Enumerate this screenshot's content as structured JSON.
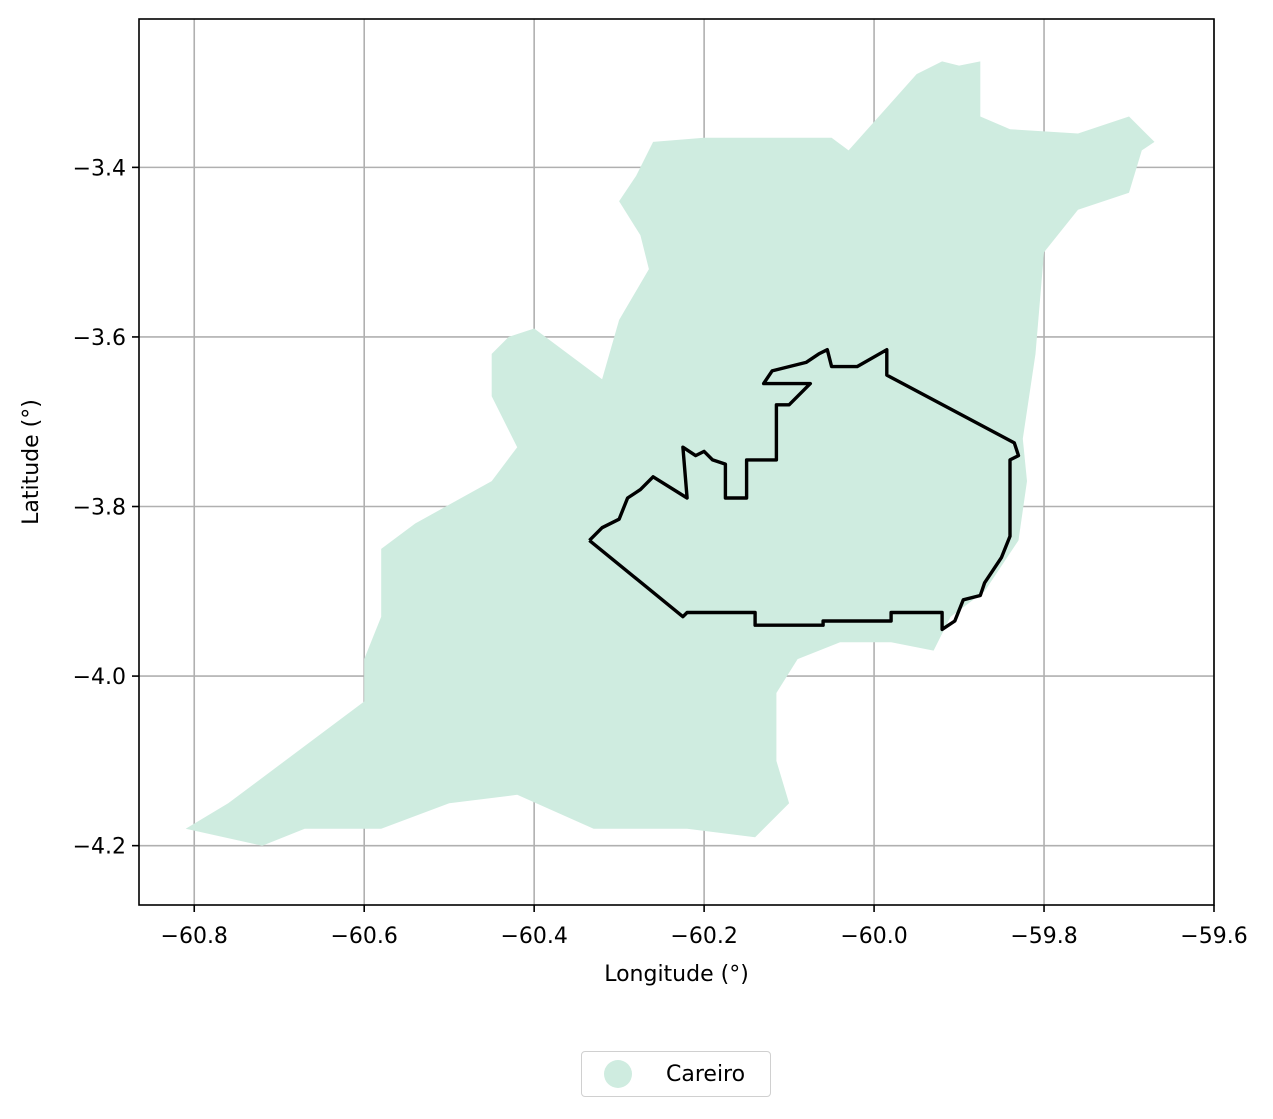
{
  "colors": {
    "region_fill": "#cfece0",
    "boundary_stroke": "#000000",
    "grid": "#b0b0b0"
  },
  "chart_data": {
    "type": "map",
    "title": "",
    "xlabel": "Longitude (°)",
    "ylabel": "Latitude (°)",
    "xlim": [
      -60.865,
      -59.6
    ],
    "ylim": [
      -4.27,
      -3.225
    ],
    "grid": true,
    "x_ticks": [
      -60.8,
      -60.6,
      -60.4,
      -60.2,
      -60.0,
      -59.8,
      -59.6
    ],
    "x_tick_labels": [
      "−60.8",
      "−60.6",
      "−60.4",
      "−60.2",
      "−60.0",
      "−59.8",
      "−59.6"
    ],
    "y_ticks": [
      -3.4,
      -3.6,
      -3.8,
      -4.0,
      -4.2
    ],
    "y_tick_labels": [
      "−3.4",
      "−3.6",
      "−3.8",
      "−4.0",
      "−4.2"
    ],
    "legend": {
      "placement": "bottom-center-below-axes",
      "entries": [
        {
          "label": "Careiro",
          "marker": "circle",
          "color": "#cfece0"
        }
      ]
    },
    "layers": [
      {
        "name": "Careiro",
        "kind": "filled-polygon",
        "coords": [
          [
            -60.81,
            -4.18
          ],
          [
            -60.72,
            -4.2
          ],
          [
            -60.67,
            -4.18
          ],
          [
            -60.58,
            -4.18
          ],
          [
            -60.5,
            -4.15
          ],
          [
            -60.42,
            -4.14
          ],
          [
            -60.33,
            -4.18
          ],
          [
            -60.22,
            -4.18
          ],
          [
            -60.14,
            -4.19
          ],
          [
            -60.1,
            -4.15
          ],
          [
            -60.115,
            -4.1
          ],
          [
            -60.115,
            -4.02
          ],
          [
            -60.09,
            -3.98
          ],
          [
            -60.04,
            -3.96
          ],
          [
            -59.98,
            -3.96
          ],
          [
            -59.93,
            -3.97
          ],
          [
            -59.91,
            -3.93
          ],
          [
            -59.87,
            -3.9
          ],
          [
            -59.85,
            -3.87
          ],
          [
            -59.83,
            -3.84
          ],
          [
            -59.82,
            -3.77
          ],
          [
            -59.825,
            -3.72
          ],
          [
            -59.81,
            -3.62
          ],
          [
            -59.8,
            -3.5
          ],
          [
            -59.76,
            -3.45
          ],
          [
            -59.7,
            -3.43
          ],
          [
            -59.685,
            -3.38
          ],
          [
            -59.67,
            -3.37
          ],
          [
            -59.7,
            -3.34
          ],
          [
            -59.76,
            -3.36
          ],
          [
            -59.84,
            -3.355
          ],
          [
            -59.875,
            -3.34
          ],
          [
            -59.875,
            -3.275
          ],
          [
            -59.9,
            -3.28
          ],
          [
            -59.92,
            -3.275
          ],
          [
            -59.95,
            -3.29
          ],
          [
            -60.03,
            -3.38
          ],
          [
            -60.05,
            -3.365
          ],
          [
            -60.2,
            -3.365
          ],
          [
            -60.26,
            -3.37
          ],
          [
            -60.28,
            -3.41
          ],
          [
            -60.3,
            -3.44
          ],
          [
            -60.275,
            -3.48
          ],
          [
            -60.265,
            -3.52
          ],
          [
            -60.3,
            -3.58
          ],
          [
            -60.32,
            -3.65
          ],
          [
            -60.4,
            -3.59
          ],
          [
            -60.43,
            -3.6
          ],
          [
            -60.45,
            -3.62
          ],
          [
            -60.45,
            -3.67
          ],
          [
            -60.42,
            -3.73
          ],
          [
            -60.45,
            -3.77
          ],
          [
            -60.54,
            -3.82
          ],
          [
            -60.58,
            -3.85
          ],
          [
            -60.58,
            -3.93
          ],
          [
            -60.6,
            -3.98
          ],
          [
            -60.6,
            -4.03
          ],
          [
            -60.76,
            -4.15
          ],
          [
            -60.81,
            -4.18
          ]
        ]
      },
      {
        "name": "",
        "kind": "outline-polygon",
        "coords": [
          [
            -60.335,
            -3.84
          ],
          [
            -60.32,
            -3.825
          ],
          [
            -60.3,
            -3.815
          ],
          [
            -60.29,
            -3.79
          ],
          [
            -60.275,
            -3.78
          ],
          [
            -60.26,
            -3.765
          ],
          [
            -60.22,
            -3.79
          ],
          [
            -60.225,
            -3.73
          ],
          [
            -60.21,
            -3.74
          ],
          [
            -60.2,
            -3.735
          ],
          [
            -60.19,
            -3.745
          ],
          [
            -60.175,
            -3.75
          ],
          [
            -60.175,
            -3.79
          ],
          [
            -60.15,
            -3.79
          ],
          [
            -60.15,
            -3.745
          ],
          [
            -60.115,
            -3.745
          ],
          [
            -60.115,
            -3.68
          ],
          [
            -60.1,
            -3.68
          ],
          [
            -60.075,
            -3.655
          ],
          [
            -60.1,
            -3.655
          ],
          [
            -60.13,
            -3.655
          ],
          [
            -60.12,
            -3.64
          ],
          [
            -60.1,
            -3.635
          ],
          [
            -60.08,
            -3.63
          ],
          [
            -60.065,
            -3.62
          ],
          [
            -60.055,
            -3.615
          ],
          [
            -60.05,
            -3.635
          ],
          [
            -60.02,
            -3.635
          ],
          [
            -59.985,
            -3.615
          ],
          [
            -59.985,
            -3.645
          ],
          [
            -59.835,
            -3.725
          ],
          [
            -59.83,
            -3.74
          ],
          [
            -59.84,
            -3.745
          ],
          [
            -59.84,
            -3.79
          ],
          [
            -59.84,
            -3.835
          ],
          [
            -59.85,
            -3.86
          ],
          [
            -59.86,
            -3.875
          ],
          [
            -59.87,
            -3.89
          ],
          [
            -59.875,
            -3.905
          ],
          [
            -59.895,
            -3.91
          ],
          [
            -59.905,
            -3.935
          ],
          [
            -59.92,
            -3.945
          ],
          [
            -59.92,
            -3.925
          ],
          [
            -59.98,
            -3.925
          ],
          [
            -59.98,
            -3.935
          ],
          [
            -60.06,
            -3.935
          ],
          [
            -60.06,
            -3.94
          ],
          [
            -60.14,
            -3.94
          ],
          [
            -60.14,
            -3.925
          ],
          [
            -60.22,
            -3.925
          ],
          [
            -60.225,
            -3.93
          ],
          [
            -60.335,
            -3.84
          ]
        ]
      }
    ]
  },
  "legend_label": "Careiro"
}
